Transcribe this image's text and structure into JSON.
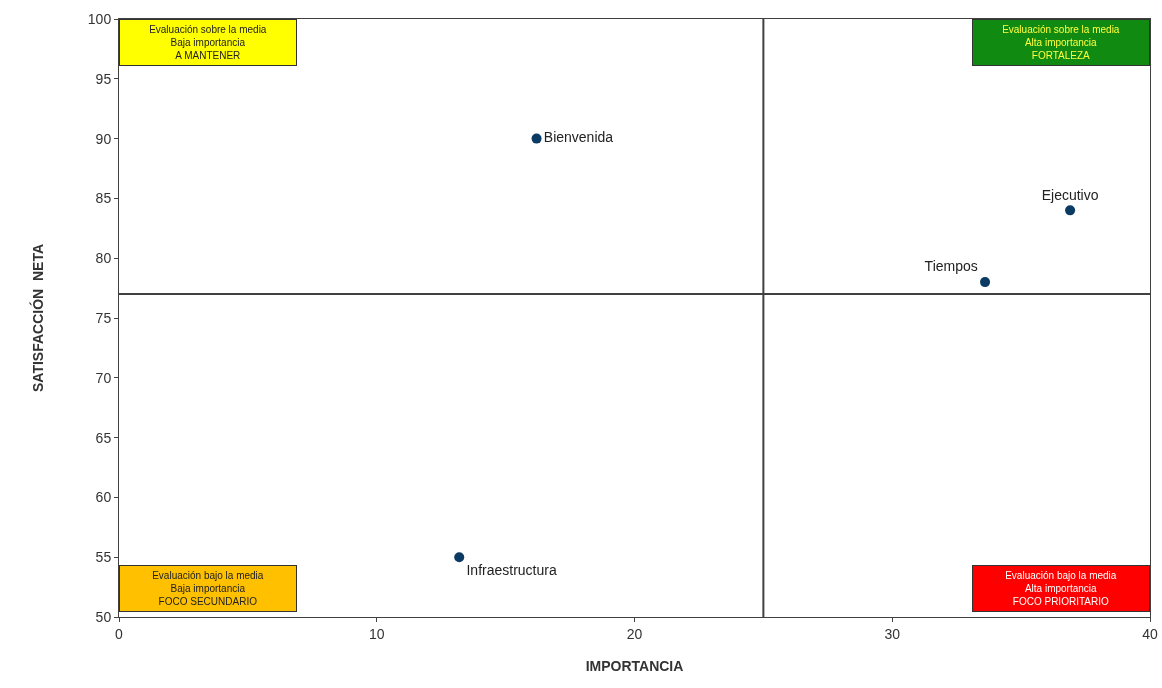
{
  "chart_data": {
    "type": "scatter",
    "xlabel": "IMPORTANCIA",
    "ylabel": "SATISFACCIÓN  NETA",
    "series": [
      {
        "name": "Bienvenida",
        "color": "#0b3a63",
        "x": [
          16.2
        ],
        "values": [
          90
        ]
      },
      {
        "name": "Ejecutivo",
        "color": "#0b3a63",
        "x": [
          36.9
        ],
        "values": [
          84
        ]
      },
      {
        "name": "Tiempos",
        "color": "#0b3a63",
        "x": [
          33.6
        ],
        "values": [
          78
        ]
      },
      {
        "name": "Infraestructura",
        "color": "#0b3a63",
        "x": [
          13.2
        ],
        "values": [
          55
        ]
      }
    ],
    "xlim": [
      0,
      40
    ],
    "xticks": [
      0,
      10,
      20,
      30,
      40
    ],
    "ylim": [
      50,
      100
    ],
    "yticks": [
      50,
      55,
      60,
      65,
      70,
      75,
      80,
      85,
      90,
      95,
      100
    ],
    "ref_lines": [
      {
        "axis": "x",
        "value": 25,
        "color": "#404040"
      },
      {
        "axis": "y",
        "value": 77,
        "color": "#404040"
      }
    ],
    "annotations": [
      "Evaluación sobre la media\nBaja importancia\nA MANTENER",
      "Evaluación sobre la media\nAlta importancia\nFORTALEZA",
      "Evaluación bajo la media\nBaja importancia\nFOCO SECUNDARIO",
      "Evaluación bajo la media\nAlta importancia\nFOCO PRIORITARIO"
    ],
    "grid": false,
    "legend": false,
    "marker": "circle"
  }
}
